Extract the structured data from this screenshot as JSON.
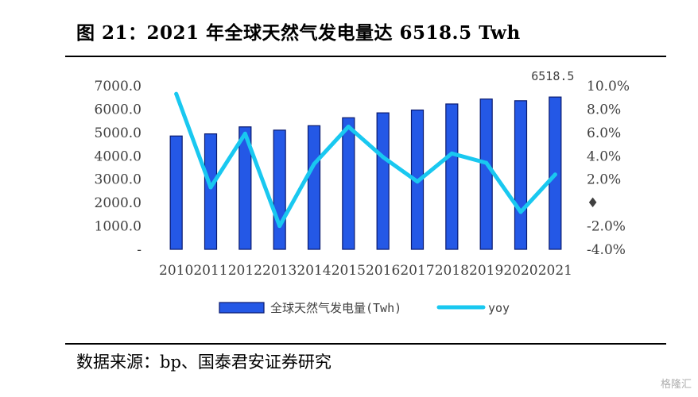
{
  "figure_title": "图 21：2021 年全球天然气发电量达 6518.5 Twh",
  "source_note": "数据来源：bp、国泰君安证券研究",
  "watermark": "格隆汇",
  "colors": {
    "bar": "#2458E6",
    "bar_edge": "#0A1A6E",
    "line": "#19C8F0",
    "text": "#404040"
  },
  "chart_data": {
    "type": "bar",
    "categories": [
      "2010",
      "2011",
      "2012",
      "2013",
      "2014",
      "2015",
      "2016",
      "2017",
      "2018",
      "2019",
      "2020",
      "2021"
    ],
    "series": [
      {
        "name": "全球天然气发电量(Twh)",
        "type": "bar",
        "axis": "left",
        "values": [
          4850,
          4940,
          5240,
          5100,
          5290,
          5630,
          5840,
          5960,
          6220,
          6430,
          6360,
          6518.5
        ]
      },
      {
        "name": "yoy",
        "type": "line",
        "axis": "right",
        "values": [
          9.3,
          1.3,
          5.9,
          -2.0,
          3.3,
          6.5,
          3.9,
          1.8,
          4.2,
          3.4,
          -0.8,
          2.4
        ]
      }
    ],
    "data_labels": [
      {
        "category": "2021",
        "text": "6518.5"
      }
    ],
    "y_left": {
      "ylim": [
        0,
        7000
      ],
      "ticks": [
        "-",
        "1000.0",
        "2000.0",
        "3000.0",
        "4000.0",
        "5000.0",
        "6000.0",
        "7000.0"
      ]
    },
    "y_right": {
      "ylim": [
        -4,
        10
      ],
      "ticks": [
        "-4.0%",
        "-2.0%",
        "♦",
        "2.0%",
        "4.0%",
        "6.0%",
        "8.0%",
        "10.0%"
      ]
    },
    "grid": false,
    "legend_position": "bottom"
  }
}
